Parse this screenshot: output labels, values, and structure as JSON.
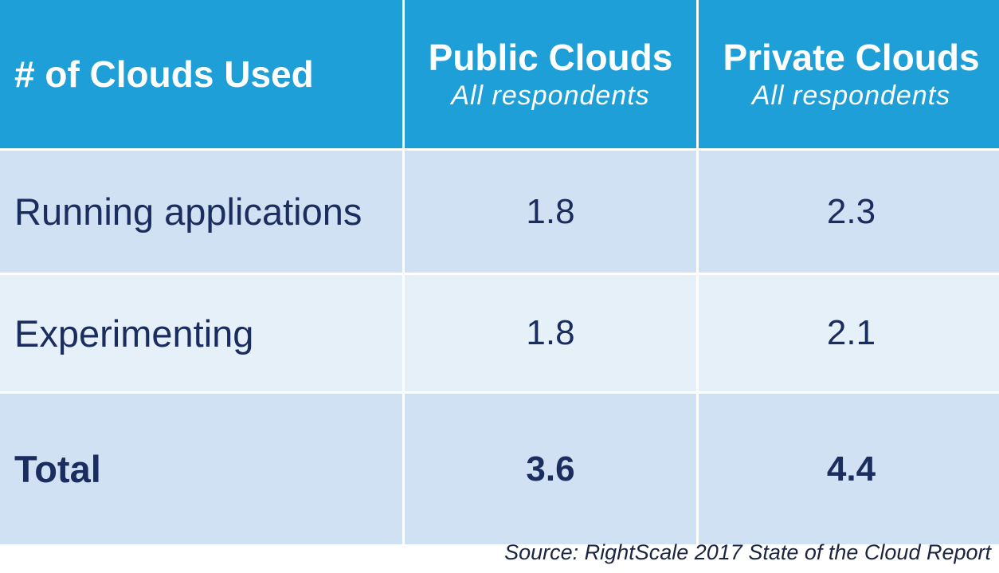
{
  "chart_data": {
    "type": "table",
    "columns": [
      {
        "title": "# of Clouds Used",
        "subtitle": ""
      },
      {
        "title": "Public Clouds",
        "subtitle": "All respondents"
      },
      {
        "title": "Private Clouds",
        "subtitle": "All respondents"
      }
    ],
    "rows": [
      {
        "label": "Running applications",
        "public": "1.8",
        "private": "2.3"
      },
      {
        "label": "Experimenting",
        "public": "1.8",
        "private": "2.1"
      },
      {
        "label": "Total",
        "public": "3.6",
        "private": "4.4"
      }
    ],
    "source": "Source: RightScale 2017 State of the Cloud Report"
  },
  "colors": {
    "header_bg": "#1e9fd7",
    "header_text": "#ffffff",
    "row_dark": "#cfe1f2",
    "row_light": "#e5f0f9",
    "body_text": "#1a2d5e"
  }
}
